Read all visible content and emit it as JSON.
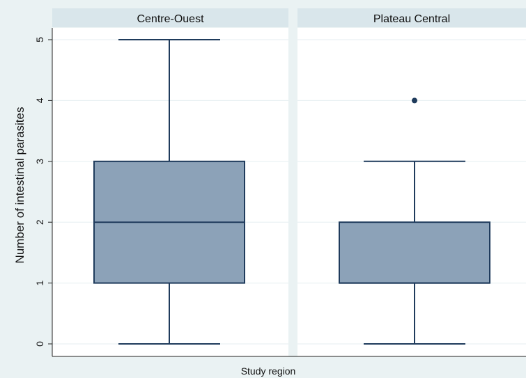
{
  "chart_data": {
    "type": "box",
    "xlabel": "Study region",
    "ylabel": "Number of intestinal parasites",
    "ylim": [
      0,
      5
    ],
    "yticks": [
      0,
      1,
      2,
      3,
      4,
      5
    ],
    "grid": true,
    "colors": {
      "box_fill": "#8ca2b8",
      "box_stroke": "#1f3b5c",
      "strip": "#d9e6eb",
      "background": "#eaf2f3"
    },
    "panels": [
      {
        "label": "Centre-Ouest",
        "min": 0,
        "q1": 1,
        "median": 2,
        "q3": 3,
        "max": 5,
        "outliers": []
      },
      {
        "label": "Plateau Central",
        "min": 0,
        "q1": 1,
        "median": 1,
        "q3": 2,
        "max": 3,
        "outliers": [
          4
        ]
      }
    ]
  }
}
